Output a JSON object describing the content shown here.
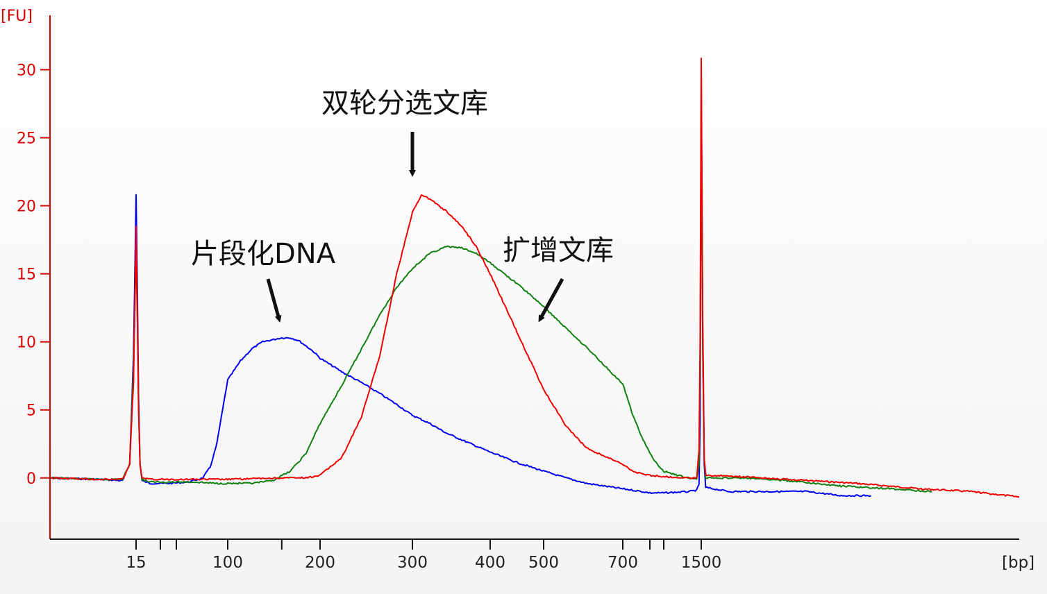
{
  "chart_data": {
    "type": "line",
    "title": "",
    "ylabel": "[FU]",
    "xlabel": "[bp]",
    "ylim": [
      -4.5,
      34
    ],
    "yticks": [
      0,
      5,
      10,
      15,
      20,
      25,
      30
    ],
    "xticks": [
      {
        "label": "15",
        "value": 15
      },
      {
        "label": "100",
        "value": 100
      },
      {
        "label": "200",
        "value": 200
      },
      {
        "label": "300",
        "value": 300
      },
      {
        "label": "400",
        "value": 400
      },
      {
        "label": "500",
        "value": 500
      },
      {
        "label": "700",
        "value": 700
      },
      {
        "label": "1500",
        "value": 1500
      }
    ],
    "minor_ticks": [
      25,
      35,
      150,
      1000,
      1200
    ],
    "grid": false,
    "colors": {
      "axis": "#d40000",
      "fragmented": "#0000ee",
      "amplified": "#108010",
      "dual_select": "#ee0000"
    },
    "series": [
      {
        "key": "fragmented",
        "color": "#0000ee",
        "points": [
          [
            6,
            0
          ],
          [
            10,
            -0.1
          ],
          [
            13,
            -0.2
          ],
          [
            14,
            1
          ],
          [
            14.6,
            9
          ],
          [
            15,
            20.8
          ],
          [
            15.4,
            14
          ],
          [
            15.8,
            6
          ],
          [
            16.3,
            1
          ],
          [
            17,
            -0.2
          ],
          [
            20,
            -0.4
          ],
          [
            30,
            -0.4
          ],
          [
            45,
            -0.3
          ],
          [
            60,
            0
          ],
          [
            70,
            0.8
          ],
          [
            80,
            2.5
          ],
          [
            90,
            5
          ],
          [
            100,
            7.2
          ],
          [
            110,
            8.6
          ],
          [
            120,
            9.5
          ],
          [
            130,
            10
          ],
          [
            150,
            10.3
          ],
          [
            160,
            10.3
          ],
          [
            170,
            10.1
          ],
          [
            180,
            9.7
          ],
          [
            190,
            9.3
          ],
          [
            200,
            8.8
          ],
          [
            220,
            7.8
          ],
          [
            240,
            7
          ],
          [
            260,
            6.2
          ],
          [
            280,
            5.4
          ],
          [
            300,
            4.6
          ],
          [
            320,
            4
          ],
          [
            340,
            3.3
          ],
          [
            360,
            2.8
          ],
          [
            400,
            1.9
          ],
          [
            450,
            1.1
          ],
          [
            500,
            0.5
          ],
          [
            550,
            0
          ],
          [
            600,
            -0.4
          ],
          [
            700,
            -0.8
          ],
          [
            800,
            -0.9
          ],
          [
            900,
            -1
          ],
          [
            1000,
            -1.1
          ],
          [
            1200,
            -1.1
          ],
          [
            1400,
            -1
          ],
          [
            1460,
            -0.9
          ],
          [
            1480,
            -0.5
          ],
          [
            1490,
            4
          ],
          [
            1500,
            29
          ],
          [
            1510,
            10
          ],
          [
            1520,
            1
          ],
          [
            1530,
            -0.7
          ],
          [
            1700,
            -1
          ],
          [
            2000,
            -1
          ],
          [
            2400,
            -1
          ],
          [
            2800,
            -1.3
          ],
          [
            3200,
            -1.3
          ]
        ]
      },
      {
        "key": "amplified",
        "color": "#108010",
        "points": [
          [
            6,
            0
          ],
          [
            10,
            -0.1
          ],
          [
            13,
            -0.1
          ],
          [
            14,
            1
          ],
          [
            14.6,
            8
          ],
          [
            15,
            17
          ],
          [
            15.4,
            12
          ],
          [
            15.8,
            5
          ],
          [
            16.3,
            1
          ],
          [
            17,
            -0.1
          ],
          [
            20,
            -0.3
          ],
          [
            50,
            -0.3
          ],
          [
            80,
            -0.4
          ],
          [
            100,
            -0.4
          ],
          [
            120,
            -0.4
          ],
          [
            140,
            -0.2
          ],
          [
            160,
            0.5
          ],
          [
            180,
            1.8
          ],
          [
            200,
            4
          ],
          [
            220,
            6.8
          ],
          [
            240,
            9.5
          ],
          [
            260,
            12
          ],
          [
            280,
            14
          ],
          [
            300,
            15.4
          ],
          [
            320,
            16.5
          ],
          [
            340,
            17
          ],
          [
            360,
            16.9
          ],
          [
            380,
            16.5
          ],
          [
            400,
            15.8
          ],
          [
            450,
            14.2
          ],
          [
            500,
            12.6
          ],
          [
            550,
            11
          ],
          [
            600,
            9.6
          ],
          [
            650,
            8.2
          ],
          [
            700,
            6.9
          ],
          [
            750,
            5.7
          ],
          [
            800,
            4.6
          ],
          [
            900,
            3
          ],
          [
            1000,
            1.8
          ],
          [
            1100,
            1
          ],
          [
            1200,
            0.5
          ],
          [
            1300,
            0.2
          ],
          [
            1400,
            0
          ],
          [
            1460,
            -0.1
          ],
          [
            1480,
            1
          ],
          [
            1490,
            8
          ],
          [
            1500,
            28
          ],
          [
            1510,
            10
          ],
          [
            1520,
            1.5
          ],
          [
            1530,
            0
          ],
          [
            1800,
            0
          ],
          [
            2200,
            -0.2
          ],
          [
            2800,
            -0.6
          ],
          [
            3500,
            -0.8
          ],
          [
            4200,
            -1
          ]
        ]
      },
      {
        "key": "dual_select",
        "color": "#ee0000",
        "points": [
          [
            6,
            0
          ],
          [
            10,
            -0.1
          ],
          [
            13,
            -0.1
          ],
          [
            14,
            1
          ],
          [
            14.6,
            7
          ],
          [
            15,
            18.5
          ],
          [
            15.4,
            12
          ],
          [
            15.8,
            5
          ],
          [
            16.3,
            1
          ],
          [
            17,
            0
          ],
          [
            20,
            -0.1
          ],
          [
            50,
            -0.1
          ],
          [
            100,
            -0.1
          ],
          [
            150,
            0
          ],
          [
            180,
            0
          ],
          [
            200,
            0.2
          ],
          [
            220,
            1.5
          ],
          [
            240,
            4.5
          ],
          [
            260,
            9
          ],
          [
            280,
            15
          ],
          [
            300,
            19.5
          ],
          [
            310,
            20.8
          ],
          [
            320,
            20.5
          ],
          [
            340,
            19.6
          ],
          [
            360,
            18.5
          ],
          [
            380,
            17
          ],
          [
            400,
            15
          ],
          [
            450,
            10.5
          ],
          [
            500,
            6.5
          ],
          [
            550,
            3.8
          ],
          [
            600,
            2.2
          ],
          [
            700,
            1
          ],
          [
            800,
            0.5
          ],
          [
            900,
            0.3
          ],
          [
            1000,
            0.2
          ],
          [
            1200,
            0.1
          ],
          [
            1400,
            0
          ],
          [
            1460,
            0
          ],
          [
            1480,
            2
          ],
          [
            1490,
            10
          ],
          [
            1500,
            30.8
          ],
          [
            1510,
            12
          ],
          [
            1520,
            1.5
          ],
          [
            1530,
            0.2
          ],
          [
            1800,
            0.1
          ],
          [
            2200,
            -0.1
          ],
          [
            3000,
            -0.4
          ],
          [
            4000,
            -0.8
          ],
          [
            5000,
            -1
          ],
          [
            6200,
            -1.4
          ]
        ]
      }
    ],
    "annotations": [
      {
        "key": "fragmented",
        "text": "片段化DNA"
      },
      {
        "key": "dual_select",
        "text": "双轮分选文库"
      },
      {
        "key": "amplified",
        "text": "扩增文库"
      }
    ]
  }
}
